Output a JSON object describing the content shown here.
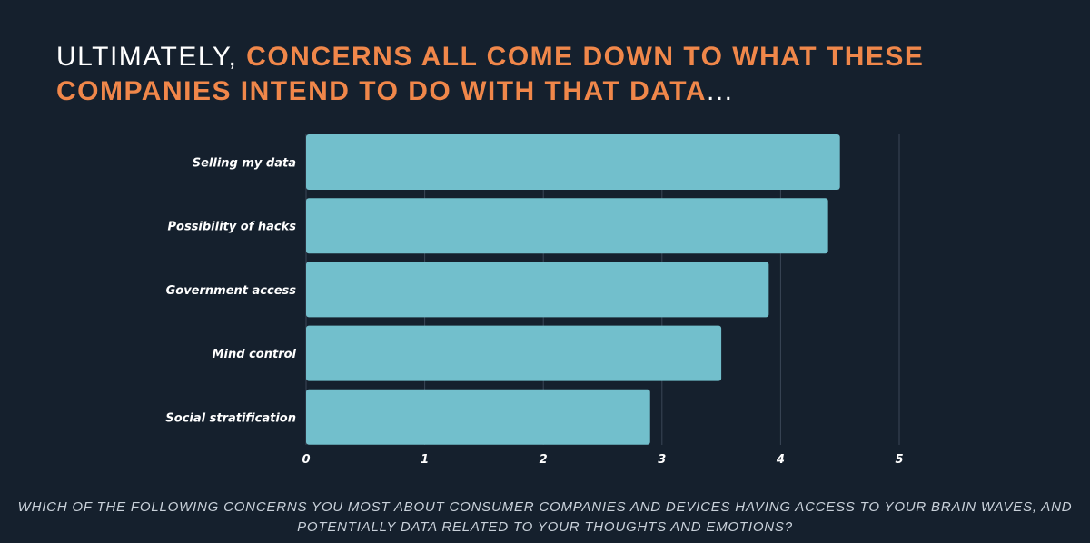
{
  "header": {
    "title_plain_1": "ULTIMATELY, ",
    "title_accent": "CONCERNS ALL COME DOWN TO WHAT THESE COMPANIES INTEND TO DO WITH THAT DATA",
    "title_plain_2": "..."
  },
  "footer": {
    "question": "WHICH OF THE FOLLOWING CONCERNS YOU MOST ABOUT CONSUMER COMPANIES AND DEVICES HAVING ACCESS TO YOUR BRAIN WAVES, AND POTENTIALLY DATA RELATED TO YOUR THOUGHTS AND EMOTIONS?"
  },
  "colors": {
    "background": "#15202d",
    "bar": "#72bfcc",
    "accent": "#f0874a",
    "grid": "#3a4656"
  },
  "chart_data": {
    "type": "bar",
    "orientation": "horizontal",
    "categories": [
      "Selling my data",
      "Possibility of hacks",
      "Government access",
      "Mind control",
      "Social stratification"
    ],
    "values": [
      4.5,
      4.4,
      3.9,
      3.5,
      2.9
    ],
    "xlim": [
      0,
      5
    ],
    "xticks": [
      0,
      1,
      2,
      3,
      4,
      5
    ],
    "title": "",
    "xlabel": "",
    "ylabel": "",
    "grid": "vertical"
  }
}
